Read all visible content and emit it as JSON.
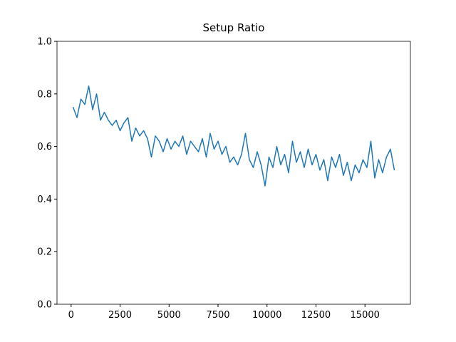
{
  "chart_data": {
    "type": "line",
    "title": "Setup Ratio",
    "x": [
      100,
      300,
      500,
      700,
      900,
      1100,
      1300,
      1500,
      1700,
      1900,
      2100,
      2300,
      2500,
      2700,
      2900,
      3100,
      3300,
      3500,
      3700,
      3900,
      4100,
      4300,
      4500,
      4700,
      4900,
      5100,
      5300,
      5500,
      5700,
      5900,
      6100,
      6300,
      6500,
      6700,
      6900,
      7100,
      7300,
      7500,
      7700,
      7900,
      8100,
      8300,
      8500,
      8700,
      8900,
      9100,
      9300,
      9500,
      9700,
      9900,
      10100,
      10300,
      10500,
      10700,
      10900,
      11100,
      11300,
      11500,
      11700,
      11900,
      12100,
      12300,
      12500,
      12700,
      12900,
      13100,
      13300,
      13500,
      13700,
      13900,
      14100,
      14300,
      14500,
      14700,
      14900,
      15100,
      15300,
      15500,
      15700,
      15900,
      16100,
      16300,
      16500
    ],
    "series": [
      {
        "color": "#1f77b4",
        "values": [
          0.75,
          0.71,
          0.78,
          0.76,
          0.83,
          0.74,
          0.8,
          0.7,
          0.73,
          0.7,
          0.68,
          0.7,
          0.66,
          0.69,
          0.71,
          0.62,
          0.67,
          0.64,
          0.66,
          0.63,
          0.56,
          0.64,
          0.62,
          0.58,
          0.63,
          0.59,
          0.62,
          0.6,
          0.64,
          0.57,
          0.62,
          0.6,
          0.58,
          0.63,
          0.56,
          0.65,
          0.59,
          0.62,
          0.57,
          0.6,
          0.54,
          0.56,
          0.53,
          0.57,
          0.65,
          0.55,
          0.52,
          0.58,
          0.53,
          0.45,
          0.56,
          0.52,
          0.6,
          0.53,
          0.57,
          0.5,
          0.62,
          0.54,
          0.58,
          0.52,
          0.59,
          0.53,
          0.57,
          0.51,
          0.55,
          0.47,
          0.56,
          0.52,
          0.57,
          0.49,
          0.54,
          0.47,
          0.53,
          0.5,
          0.55,
          0.52,
          0.62,
          0.48,
          0.55,
          0.5,
          0.56,
          0.59,
          0.51
        ]
      }
    ],
    "xlim": [
      -720,
      17320
    ],
    "xticks": [
      0,
      2500,
      5000,
      7500,
      10000,
      12500,
      15000
    ],
    "ylim": [
      0,
      1
    ],
    "yticks": [
      {
        "value": 0,
        "label": "0.0"
      },
      {
        "value": 0.2,
        "label": "0.2"
      },
      {
        "value": 0.4,
        "label": "0.4"
      },
      {
        "value": 0.6,
        "label": "0.6"
      },
      {
        "value": 0.8,
        "label": "0.8"
      },
      {
        "value": 1,
        "label": "1.0"
      }
    ]
  }
}
